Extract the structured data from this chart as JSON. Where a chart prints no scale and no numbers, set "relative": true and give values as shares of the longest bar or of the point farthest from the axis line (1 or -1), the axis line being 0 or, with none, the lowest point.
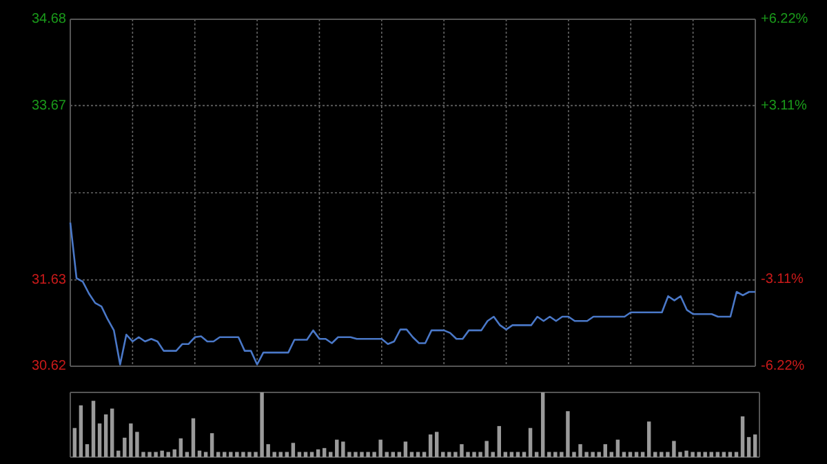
{
  "chart_data": [
    {
      "type": "line",
      "categories": [
        null,
        null,
        null,
        null,
        null,
        null,
        null,
        null,
        null,
        null,
        null,
        null,
        null,
        null,
        null,
        null,
        null,
        null,
        null,
        null,
        null,
        null,
        null,
        null,
        null,
        null,
        null,
        null,
        null,
        null,
        null,
        null,
        null,
        null,
        null,
        null,
        null,
        null,
        null,
        null,
        null,
        null,
        null,
        null,
        null,
        null,
        null,
        null,
        null,
        null,
        null,
        null,
        null,
        null,
        null,
        null,
        null,
        null,
        null,
        null,
        null,
        null,
        null,
        null,
        null,
        null,
        null,
        null,
        null,
        null,
        null,
        null,
        null,
        null,
        null,
        null,
        null,
        null,
        null,
        null,
        null,
        null,
        null,
        null,
        null,
        null,
        null,
        null,
        null,
        null,
        null,
        null,
        null,
        null,
        null,
        null,
        null,
        null,
        null,
        null,
        null,
        null,
        null,
        null,
        null,
        null,
        null,
        null,
        null,
        null,
        null
      ],
      "ylim": [
        30.62,
        34.68
      ],
      "yticks": [
        30.62,
        31.63,
        {
          "value": 32.65,
          "label": null
        },
        33.67,
        34.68
      ],
      "y2lim": [
        -6.22,
        6.22
      ],
      "y2ticks": [
        {
          "value": -6.22,
          "label": "-6.22%"
        },
        {
          "value": -3.11,
          "label": "-3.11%"
        },
        {
          "value": 3.11,
          "label": "+3.11%"
        },
        {
          "value": 6.22,
          "label": "+6.22%"
        }
      ],
      "grid": true,
      "marker": "none",
      "line_style": "solid",
      "series": [
        {
          "color": "#4a78c8",
          "values": [
            32.3,
            31.65,
            31.61,
            31.47,
            31.36,
            31.32,
            31.17,
            31.04,
            30.64,
            30.99,
            30.91,
            30.96,
            30.91,
            30.94,
            30.91,
            30.8,
            30.8,
            30.8,
            30.88,
            30.88,
            30.96,
            30.97,
            30.91,
            30.91,
            30.96,
            30.96,
            30.96,
            30.96,
            30.8,
            30.8,
            30.64,
            30.78,
            30.78,
            30.78,
            30.78,
            30.78,
            30.93,
            30.93,
            30.93,
            31.04,
            30.94,
            30.94,
            30.89,
            30.96,
            30.96,
            30.96,
            30.94,
            30.94,
            30.94,
            30.94,
            30.94,
            30.88,
            30.91,
            31.05,
            31.05,
            30.96,
            30.89,
            30.89,
            31.04,
            31.04,
            31.04,
            31.01,
            30.94,
            30.94,
            31.04,
            31.04,
            31.04,
            31.15,
            31.2,
            31.1,
            31.05,
            31.1,
            31.1,
            31.1,
            31.1,
            31.2,
            31.15,
            31.2,
            31.15,
            31.2,
            31.2,
            31.15,
            31.15,
            31.15,
            31.2,
            31.2,
            31.2,
            31.2,
            31.2,
            31.2,
            31.25,
            31.25,
            31.25,
            31.25,
            31.25,
            31.25,
            31.44,
            31.39,
            31.44,
            31.28,
            31.23,
            31.23,
            31.23,
            31.23,
            31.2,
            31.2,
            31.2,
            31.49,
            31.45,
            31.49,
            31.49
          ]
        }
      ]
    },
    {
      "type": "bar",
      "relative": true,
      "color": "#9a9a9a",
      "categories": [
        null,
        null,
        null,
        null,
        null,
        null,
        null,
        null,
        null,
        null,
        null,
        null,
        null,
        null,
        null,
        null,
        null,
        null,
        null,
        null,
        null,
        null,
        null,
        null,
        null,
        null,
        null,
        null,
        null,
        null,
        null,
        null,
        null,
        null,
        null,
        null,
        null,
        null,
        null,
        null,
        null,
        null,
        null,
        null,
        null,
        null,
        null,
        null,
        null,
        null,
        null,
        null,
        null,
        null,
        null,
        null,
        null,
        null,
        null,
        null,
        null,
        null,
        null,
        null,
        null,
        null,
        null,
        null,
        null,
        null,
        null,
        null,
        null,
        null,
        null,
        null,
        null,
        null,
        null,
        null,
        null,
        null,
        null,
        null,
        null,
        null,
        null,
        null,
        null,
        null,
        null,
        null,
        null,
        null,
        null,
        null,
        null,
        null,
        null,
        null,
        null,
        null,
        null,
        null,
        null,
        null,
        null,
        null,
        null,
        null
      ],
      "values": [
        0.45,
        0.8,
        0.2,
        0.87,
        0.52,
        0.66,
        0.75,
        0.1,
        0.3,
        0.52,
        0.39,
        0.08,
        0.08,
        0.08,
        0.1,
        0.08,
        0.12,
        0.29,
        0.08,
        0.6,
        0.1,
        0.08,
        0.37,
        0.08,
        0.08,
        0.08,
        0.08,
        0.08,
        0.08,
        0.08,
        1,
        0.2,
        0.08,
        0.08,
        0.08,
        0.22,
        0.08,
        0.08,
        0.08,
        0.12,
        0.14,
        0.08,
        0.27,
        0.24,
        0.08,
        0.08,
        0.08,
        0.08,
        0.08,
        0.27,
        0.08,
        0.08,
        0.08,
        0.24,
        0.08,
        0.08,
        0.08,
        0.35,
        0.39,
        0.08,
        0.08,
        0.08,
        0.2,
        0.08,
        0.08,
        0.08,
        0.25,
        0.08,
        0.48,
        0.08,
        0.08,
        0.08,
        0.08,
        0.45,
        0.08,
        1,
        0.08,
        0.08,
        0.08,
        0.71,
        0.08,
        0.2,
        0.08,
        0.08,
        0.08,
        0.2,
        0.08,
        0.27,
        0.08,
        0.08,
        0.08,
        0.08,
        0.55,
        0.08,
        0.08,
        0.08,
        0.25,
        0.08,
        0.1,
        0.08,
        0.08,
        0.08,
        0.08,
        0.08,
        0.08,
        0.08,
        0.08,
        0.63,
        0.31,
        0.35
      ]
    }
  ]
}
